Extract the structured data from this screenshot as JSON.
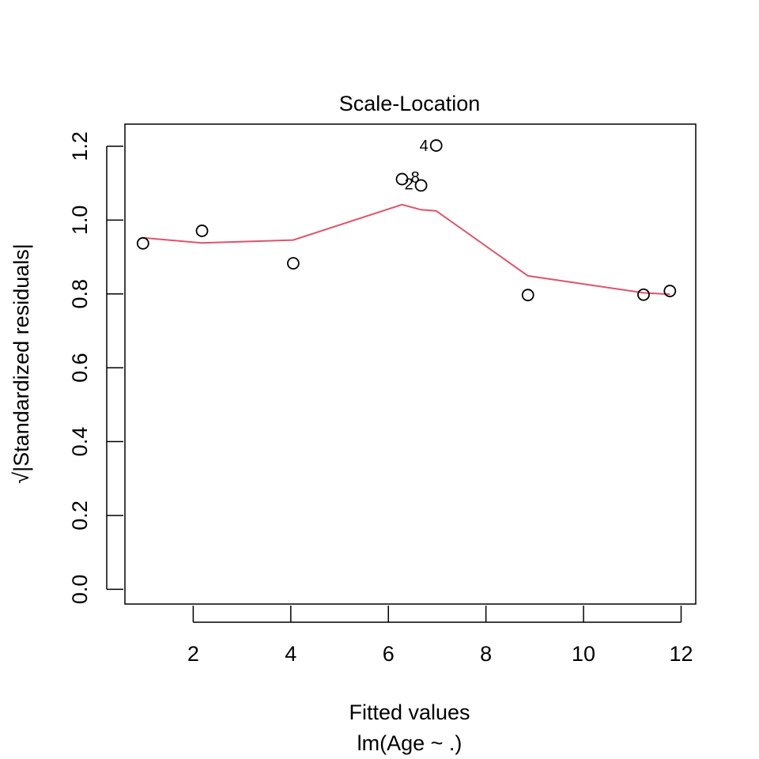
{
  "chart_data": {
    "type": "scatter",
    "title": "Scale-Location",
    "xlabel": "Fitted values",
    "sublabel": "lm(Age ~ .)",
    "ylabel": "√|Standardized residuals|",
    "xlim": [
      0.6,
      12.3
    ],
    "ylim": [
      -0.04,
      1.26
    ],
    "x_ticks": [
      2,
      4,
      6,
      8,
      10,
      12
    ],
    "y_ticks": [
      0.0,
      0.2,
      0.4,
      0.6,
      0.8,
      1.0,
      1.2
    ],
    "x_tick_labels": [
      "2",
      "4",
      "6",
      "8",
      "10",
      "12"
    ],
    "y_tick_labels": [
      "0.0",
      "0.2",
      "0.4",
      "0.6",
      "0.8",
      "1.0",
      "1.2"
    ],
    "points": [
      {
        "x": 0.97,
        "y": 0.937,
        "label": ""
      },
      {
        "x": 2.18,
        "y": 0.971,
        "label": ""
      },
      {
        "x": 4.05,
        "y": 0.883,
        "label": ""
      },
      {
        "x": 6.28,
        "y": 1.111,
        "label": ""
      },
      {
        "x": 6.67,
        "y": 1.094,
        "label": ""
      },
      {
        "x": 6.98,
        "y": 1.202,
        "label": "4"
      },
      {
        "x": 8.86,
        "y": 0.797,
        "label": ""
      },
      {
        "x": 11.23,
        "y": 0.798,
        "label": ""
      },
      {
        "x": 11.77,
        "y": 0.808,
        "label": ""
      }
    ],
    "labels": [
      {
        "x": 6.55,
        "y": 1.116,
        "text": "8"
      },
      {
        "x": 6.42,
        "y": 1.098,
        "text": "2"
      }
    ],
    "smooth_line": {
      "color": "#DF536B",
      "x": [
        0.97,
        2.18,
        4.05,
        6.28,
        6.67,
        6.98,
        8.86,
        11.23,
        11.77
      ],
      "y": [
        0.952,
        0.938,
        0.946,
        1.042,
        1.028,
        1.025,
        0.849,
        0.803,
        0.799
      ]
    },
    "grid": false,
    "legend": "none"
  }
}
